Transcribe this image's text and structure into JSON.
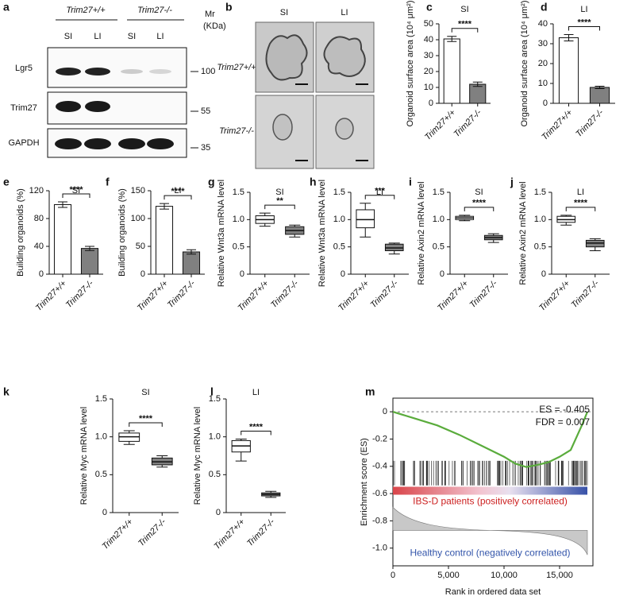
{
  "figure": {
    "a": {
      "label": "a",
      "genotypes": [
        "Trim27+/+",
        "Trim27-/-"
      ],
      "lanes": [
        "SI",
        "LI",
        "SI",
        "LI"
      ],
      "mr_label": [
        "Mr",
        "(KDa)"
      ],
      "rows": [
        "Lgr5",
        "Trim27",
        "GAPDH"
      ],
      "markers": [
        100,
        55,
        35
      ]
    },
    "b": {
      "label": "b",
      "columns": [
        "SI",
        "LI"
      ],
      "rows": [
        "Trim27+/+",
        "Trim27-/-"
      ]
    }
  },
  "chart_data": [
    {
      "type": "bar",
      "label": "c",
      "title": "SI",
      "ylabel": "Organoid surface area (10⁴ μm²)",
      "categories": [
        "Trim27+/+",
        "Trim27-/-"
      ],
      "values": [
        40.5,
        12
      ],
      "errors": [
        1.6,
        1.4
      ],
      "colors": [
        "#ffffff",
        "#808080"
      ],
      "ylim": [
        0,
        50
      ],
      "yticks": [
        0,
        10,
        20,
        30,
        40,
        50
      ],
      "significance": "****"
    },
    {
      "type": "bar",
      "label": "d",
      "title": "LI",
      "ylabel": "Organoid surface area (10⁴ μm²)",
      "categories": [
        "Trim27+/+",
        "Trim27-/-"
      ],
      "values": [
        33,
        8
      ],
      "errors": [
        1.6,
        0.6
      ],
      "colors": [
        "#ffffff",
        "#808080"
      ],
      "ylim": [
        0,
        40
      ],
      "yticks": [
        0,
        10,
        20,
        30,
        40
      ],
      "significance": "****"
    },
    {
      "type": "bar",
      "label": "e",
      "title": "SI",
      "ylabel": "Building organoids (%)",
      "categories": [
        "Trim27+/+",
        "Trim27-/-"
      ],
      "values": [
        100,
        37
      ],
      "errors": [
        4,
        3
      ],
      "colors": [
        "#ffffff",
        "#808080"
      ],
      "ylim": [
        0,
        120
      ],
      "yticks": [
        0,
        40,
        80,
        120
      ],
      "significance": "****"
    },
    {
      "type": "bar",
      "label": "f",
      "title": "LI",
      "ylabel": "Building organoids (%)",
      "categories": [
        "Trim27+/+",
        "Trim27-/-"
      ],
      "values": [
        122,
        40
      ],
      "errors": [
        5,
        4
      ],
      "colors": [
        "#ffffff",
        "#808080"
      ],
      "ylim": [
        0,
        150
      ],
      "yticks": [
        0,
        50,
        100,
        150
      ],
      "significance": "****"
    },
    {
      "type": "box",
      "label": "g",
      "title": "SI",
      "ylabel": "Relative Wnt3a mRNA level",
      "categories": [
        "Trim27+/+",
        "Trim27-/-"
      ],
      "boxes": [
        [
          0.88,
          0.93,
          1.0,
          1.07,
          1.12
        ],
        [
          0.68,
          0.73,
          0.8,
          0.87,
          0.9
        ]
      ],
      "colors": [
        "#ffffff",
        "#808080"
      ],
      "ylim": [
        0,
        1.5
      ],
      "yticks": [
        0,
        0.5,
        {
          "value": 1,
          "label": "1.0"
        },
        1.5
      ],
      "significance": "**"
    },
    {
      "type": "box",
      "label": "h",
      "title": "LI",
      "ylabel": "Relative Wnt3a mRNA level",
      "categories": [
        "Trim27+/+",
        "Trim27-/-"
      ],
      "boxes": [
        [
          0.68,
          0.85,
          1.0,
          1.18,
          1.3
        ],
        [
          0.37,
          0.43,
          0.48,
          0.55,
          0.57
        ]
      ],
      "colors": [
        "#ffffff",
        "#808080"
      ],
      "ylim": [
        0,
        1.5
      ],
      "yticks": [
        0,
        0.5,
        {
          "value": 1,
          "label": "1.0"
        },
        1.5
      ],
      "significance": "***"
    },
    {
      "type": "box",
      "label": "i",
      "title": "SI",
      "ylabel": "Relative Axin2 mRNA level",
      "categories": [
        "Trim27+/+",
        "Trim27-/-"
      ],
      "boxes": [
        [
          0.98,
          1.0,
          1.03,
          1.06,
          1.08
        ],
        [
          0.58,
          0.63,
          0.67,
          0.71,
          0.74
        ]
      ],
      "colors": [
        "#ffffff",
        "#808080"
      ],
      "ylim": [
        0,
        1.5
      ],
      "yticks": [
        0,
        0.5,
        {
          "value": 1,
          "label": "1.0"
        },
        1.5
      ],
      "significance": "****"
    },
    {
      "type": "box",
      "label": "j",
      "title": "LI",
      "ylabel": "Relative Axin2 mRNA level",
      "categories": [
        "Trim27+/+",
        "Trim27-/-"
      ],
      "boxes": [
        [
          0.9,
          0.95,
          1.0,
          1.06,
          1.08
        ],
        [
          0.43,
          0.5,
          0.57,
          0.62,
          0.65
        ]
      ],
      "colors": [
        "#ffffff",
        "#808080"
      ],
      "ylim": [
        0,
        1.5
      ],
      "yticks": [
        0,
        0.5,
        {
          "value": 1,
          "label": "1.0"
        },
        1.5
      ],
      "significance": "****"
    },
    {
      "type": "box",
      "label": "k",
      "title": "SI",
      "ylabel": "Relative Myc mRNA level",
      "categories": [
        "Trim27+/+",
        "Trim27-/-"
      ],
      "boxes": [
        [
          0.9,
          0.94,
          1.0,
          1.05,
          1.08
        ],
        [
          0.6,
          0.63,
          0.67,
          0.72,
          0.75
        ]
      ],
      "colors": [
        "#ffffff",
        "#808080"
      ],
      "ylim": [
        0,
        1.5
      ],
      "yticks": [
        0,
        0.5,
        {
          "value": 1,
          "label": "1.0"
        },
        1.5
      ],
      "significance": "****"
    },
    {
      "type": "box",
      "label": "l",
      "title": "LI",
      "ylabel": "Relative Myc mRNA level",
      "categories": [
        "Trim27+/+",
        "Trim27-/-"
      ],
      "boxes": [
        [
          0.68,
          0.8,
          0.88,
          0.95,
          0.97
        ],
        [
          0.2,
          0.22,
          0.24,
          0.26,
          0.28
        ]
      ],
      "colors": [
        "#ffffff",
        "#808080"
      ],
      "ylim": [
        0,
        1.5
      ],
      "yticks": [
        0,
        0.5,
        {
          "value": 1,
          "label": "1.0"
        },
        1.5
      ],
      "significance": "****"
    },
    {
      "type": "line",
      "label": "m",
      "xlabel": "Rank in ordered data set",
      "ylabel": "Enrichment score (ES)",
      "x": [
        0,
        2000,
        4000,
        6000,
        8000,
        10000,
        11000,
        12000,
        13000,
        14000,
        15000,
        16000,
        17000,
        17500
      ],
      "y": [
        0,
        -0.05,
        -0.1,
        -0.17,
        -0.25,
        -0.33,
        -0.38,
        -0.405,
        -0.39,
        -0.37,
        -0.33,
        -0.28,
        -0.1,
        0
      ],
      "color": "#5aac3c",
      "xlim": [
        0,
        18000
      ],
      "xticks": [
        0,
        {
          "value": 5000,
          "label": "5,000"
        },
        {
          "value": 10000,
          "label": "10,000"
        },
        {
          "value": 15000,
          "label": "15,000"
        }
      ],
      "ylim": [
        -1.13,
        0.1
      ],
      "yticks": [
        {
          "value": -1,
          "label": "-1.0"
        },
        -0.8,
        -0.6,
        -0.4,
        -0.2,
        0
      ],
      "annotations": [
        "ES = -0.405",
        "FDR = 0.007"
      ],
      "band_labels": [
        "IBS-D patients (positively correlated)",
        "Healthy control (negatively correlated)"
      ]
    }
  ]
}
